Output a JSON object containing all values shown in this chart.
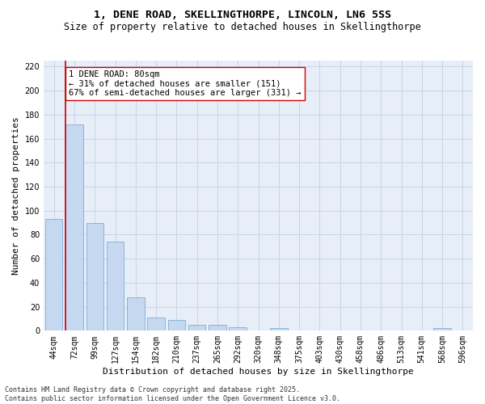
{
  "title_line1": "1, DENE ROAD, SKELLINGTHORPE, LINCOLN, LN6 5SS",
  "title_line2": "Size of property relative to detached houses in Skellingthorpe",
  "xlabel": "Distribution of detached houses by size in Skellingthorpe",
  "ylabel": "Number of detached properties",
  "bins": [
    "44sqm",
    "72sqm",
    "99sqm",
    "127sqm",
    "154sqm",
    "182sqm",
    "210sqm",
    "237sqm",
    "265sqm",
    "292sqm",
    "320sqm",
    "348sqm",
    "375sqm",
    "403sqm",
    "430sqm",
    "458sqm",
    "486sqm",
    "513sqm",
    "541sqm",
    "568sqm",
    "596sqm"
  ],
  "values": [
    93,
    172,
    90,
    74,
    28,
    11,
    9,
    5,
    5,
    3,
    0,
    2,
    0,
    0,
    0,
    0,
    0,
    0,
    0,
    2,
    0
  ],
  "bar_color": "#c5d8ef",
  "bar_edge_color": "#7aaed4",
  "vline_color": "#cc0000",
  "annotation_text": "1 DENE ROAD: 80sqm\n← 31% of detached houses are smaller (151)\n67% of semi-detached houses are larger (331) →",
  "annotation_box_color": "#ffffff",
  "annotation_box_edge": "#cc0000",
  "ylim": [
    0,
    225
  ],
  "yticks": [
    0,
    20,
    40,
    60,
    80,
    100,
    120,
    140,
    160,
    180,
    200,
    220
  ],
  "grid_color": "#c8d4e8",
  "background_color": "#e8eef8",
  "footer": "Contains HM Land Registry data © Crown copyright and database right 2025.\nContains public sector information licensed under the Open Government Licence v3.0.",
  "title_fontsize": 9.5,
  "subtitle_fontsize": 8.5,
  "axis_label_fontsize": 8,
  "tick_fontsize": 7,
  "annotation_fontsize": 7.5,
  "footer_fontsize": 6
}
